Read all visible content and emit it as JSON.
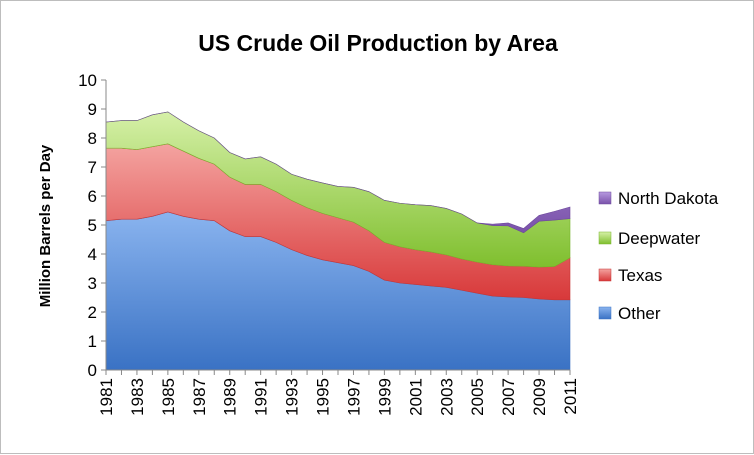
{
  "chart_data": {
    "type": "area",
    "stacked": true,
    "title": "US Crude Oil Production by Area",
    "xlabel": "",
    "ylabel": "Million Barrels per Day",
    "ylim": [
      0,
      10
    ],
    "yticks": [
      "0",
      "1",
      "2",
      "3",
      "4",
      "5",
      "6",
      "7",
      "8",
      "9",
      "10"
    ],
    "x": [
      1981,
      1982,
      1983,
      1984,
      1985,
      1986,
      1987,
      1988,
      1989,
      1990,
      1991,
      1992,
      1993,
      1994,
      1995,
      1996,
      1997,
      1998,
      1999,
      2000,
      2001,
      2002,
      2003,
      2004,
      2005,
      2006,
      2007,
      2008,
      2009,
      2010,
      2011
    ],
    "xtick_labels": [
      "1981",
      "1983",
      "1985",
      "1987",
      "1989",
      "1991",
      "1993",
      "1995",
      "1997",
      "1999",
      "2001",
      "2003",
      "2005",
      "2007",
      "2009",
      "2011"
    ],
    "legend_position": "right",
    "series": [
      {
        "name": "Other",
        "color": "#4f86d6",
        "values": [
          5.15,
          5.2,
          5.2,
          5.3,
          5.45,
          5.3,
          5.2,
          5.15,
          4.8,
          4.6,
          4.6,
          4.4,
          4.15,
          3.95,
          3.8,
          3.7,
          3.6,
          3.4,
          3.1,
          3.0,
          2.95,
          2.9,
          2.85,
          2.75,
          2.65,
          2.55,
          2.52,
          2.5,
          2.45,
          2.42,
          2.42
        ]
      },
      {
        "name": "Texas",
        "color": "#e8504b",
        "values": [
          2.5,
          2.45,
          2.4,
          2.4,
          2.35,
          2.25,
          2.1,
          1.95,
          1.85,
          1.8,
          1.8,
          1.75,
          1.7,
          1.65,
          1.6,
          1.55,
          1.5,
          1.4,
          1.3,
          1.25,
          1.2,
          1.17,
          1.12,
          1.08,
          1.07,
          1.08,
          1.07,
          1.08,
          1.1,
          1.15,
          1.45
        ]
      },
      {
        "name": "Deepwater",
        "color": "#8fcc3e",
        "values": [
          0.9,
          0.95,
          1.0,
          1.1,
          1.1,
          1.0,
          0.95,
          0.9,
          0.85,
          0.88,
          0.95,
          0.95,
          0.9,
          0.98,
          1.05,
          1.08,
          1.2,
          1.35,
          1.45,
          1.5,
          1.55,
          1.6,
          1.6,
          1.55,
          1.35,
          1.35,
          1.38,
          1.15,
          1.58,
          1.6,
          1.35
        ]
      },
      {
        "name": "North Dakota",
        "color": "#8a64b8",
        "values": [
          0,
          0,
          0,
          0,
          0,
          0,
          0,
          0,
          0,
          0,
          0,
          0,
          0,
          0,
          0,
          0,
          0,
          0,
          0,
          0,
          0,
          0,
          0,
          0,
          0,
          0.05,
          0.1,
          0.15,
          0.2,
          0.3,
          0.4
        ]
      }
    ]
  }
}
